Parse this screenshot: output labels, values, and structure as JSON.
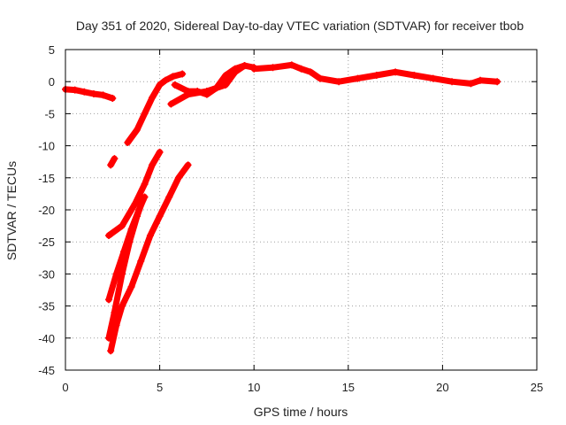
{
  "chart_data": {
    "type": "scatter",
    "title": "Day 351 of 2020, Sidereal Day-to-day VTEC variation (SDTVAR) for receiver tbob",
    "xlabel": "GPS time / hours",
    "ylabel": "SDTVAR / TECUs",
    "xlim": [
      0,
      25
    ],
    "ylim": [
      -45,
      5
    ],
    "xticks": [
      0,
      5,
      10,
      15,
      20,
      25
    ],
    "yticks": [
      5,
      0,
      -5,
      -10,
      -15,
      -20,
      -25,
      -30,
      -35,
      -40,
      -45
    ],
    "grid": true,
    "marker": "+",
    "series": [
      {
        "name": "SDTVAR",
        "color": "#ff0000",
        "tracks": [
          {
            "x": [
              0.0,
              0.5,
              1.0,
              1.5,
              2.0,
              2.5
            ],
            "y": [
              -1.2,
              -1.3,
              -1.6,
              -1.9,
              -2.1,
              -2.6
            ]
          },
          {
            "x": [
              2.4,
              2.6
            ],
            "y": [
              -13.0,
              -12.0
            ]
          },
          {
            "x": [
              3.3,
              3.8,
              4.2,
              4.6,
              5.0,
              5.3,
              5.7,
              6.2
            ],
            "y": [
              -9.5,
              -7.5,
              -5.0,
              -2.5,
              -0.5,
              0.2,
              0.8,
              1.2
            ]
          },
          {
            "x": [
              5.8,
              6.5,
              7.0,
              7.5,
              8.0,
              8.5,
              9.0,
              9.5,
              10.0
            ],
            "y": [
              -0.5,
              -1.5,
              -1.5,
              -2.0,
              -1.0,
              1.0,
              2.0,
              2.5,
              2.2
            ]
          },
          {
            "x": [
              5.6,
              6.5,
              7.5,
              8.0,
              8.5,
              9.0,
              9.5
            ],
            "y": [
              -3.5,
              -2.0,
              -1.5,
              -1.0,
              -0.5,
              1.5,
              2.5
            ]
          },
          {
            "x": [
              10.0,
              11.0,
              12.0,
              12.5,
              13.0,
              13.5,
              14.5,
              15.5,
              16.5,
              17.5,
              18.5,
              19.5,
              20.5,
              21.5,
              22.0,
              22.9
            ],
            "y": [
              2.0,
              2.2,
              2.6,
              2.0,
              1.5,
              0.5,
              0.0,
              0.5,
              1.0,
              1.5,
              1.0,
              0.5,
              0.0,
              -0.3,
              0.2,
              0.0
            ]
          },
          {
            "x": [
              2.3,
              3.0,
              3.7,
              4.2,
              4.6,
              5.0
            ],
            "y": [
              -24.0,
              -22.5,
              -19.0,
              -16.0,
              -13.0,
              -11.0
            ]
          },
          {
            "x": [
              2.3,
              2.7,
              3.1,
              3.5,
              3.9,
              4.2
            ],
            "y": [
              -34.0,
              -30.0,
              -26.5,
              -23.0,
              -20.0,
              -18.0
            ]
          },
          {
            "x": [
              2.3,
              2.6,
              3.0,
              3.4,
              3.8,
              4.1
            ],
            "y": [
              -40.0,
              -36.0,
              -30.0,
              -25.0,
              -21.0,
              -18.5
            ]
          },
          {
            "x": [
              2.4,
              2.7,
              3.0,
              3.5,
              4.0,
              4.5,
              5.0,
              5.5,
              6.0,
              6.5
            ],
            "y": [
              -42.0,
              -38.0,
              -35.0,
              -32.0,
              -28.0,
              -24.0,
              -21.0,
              -18.0,
              -15.0,
              -13.0
            ]
          }
        ]
      }
    ]
  }
}
